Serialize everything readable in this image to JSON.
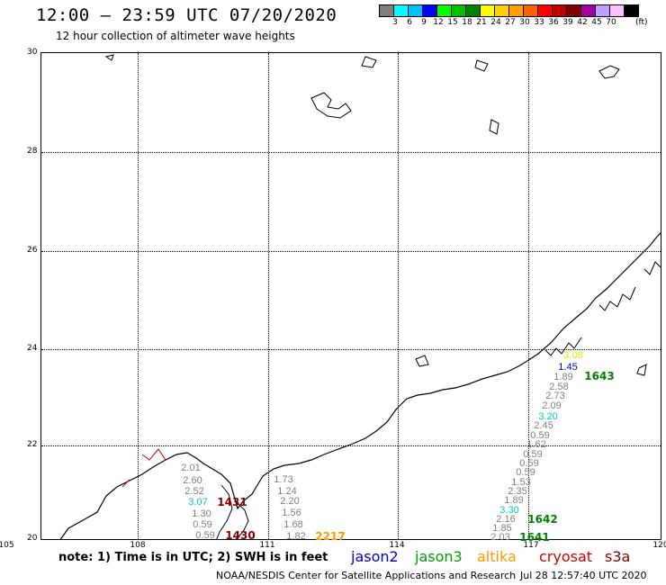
{
  "header": {
    "title": "12:00 — 23:59 UTC 07/20/2020",
    "subtitle": "12 hour collection of altimeter wave heights"
  },
  "colorbar": {
    "colors": [
      "#808080",
      "#00ffff",
      "#00c0ff",
      "#0000ff",
      "#00ff00",
      "#00c000",
      "#008000",
      "#ffff00",
      "#ffd000",
      "#ffa000",
      "#ff6000",
      "#ff0000",
      "#c00000",
      "#800000",
      "#a000a0",
      "#c0a0ff",
      "#ffc0ff",
      "#000000"
    ],
    "labels": [
      "3",
      "6",
      "9",
      "12",
      "15",
      "18",
      "21",
      "24",
      "27",
      "30",
      "33",
      "36",
      "39",
      "42",
      "45",
      "70"
    ],
    "unit": "(ft)"
  },
  "axes": {
    "lat_labels": [
      "30",
      "28",
      "26",
      "24",
      "22",
      "20"
    ],
    "lon_labels": [
      "105",
      "108",
      "111",
      "114",
      "117",
      "120"
    ]
  },
  "observations": {
    "track_west": [
      "2.01",
      "2.60",
      "2.52",
      "3.07",
      "1.30",
      "0.59",
      "0.59"
    ],
    "track_mid": [
      "1.73",
      "1.24",
      "2.20",
      "1.56",
      "1.68",
      "1.82"
    ],
    "track_east": [
      "3.08",
      "1.45",
      "1.89",
      "2.58",
      "2.73",
      "2.09",
      "3.20",
      "2.45",
      "0.59",
      "1.62",
      "0.59",
      "0.59",
      "0.59",
      "1.53",
      "2.35",
      "1.89",
      "3.30",
      "2.16",
      "1.85",
      "2.03"
    ]
  },
  "passes": {
    "p1": "1431",
    "p2": "1430",
    "p3": "2217",
    "p4": "1643",
    "p5": "1642",
    "p6": "1641"
  },
  "colors": {
    "jason2": "#0000cc",
    "jason3": "#00a000",
    "altika": "#ff9900",
    "cryosat": "#cc0000",
    "s3a": "#800000"
  },
  "legend": {
    "note": "note: 1) Time is in UTC; 2) SWH is in feet",
    "jason2": "jason2",
    "jason3": "jason3",
    "altika": "altika",
    "cryosat": "cryosat",
    "s3a": "s3a"
  },
  "footer": {
    "credit": "NOAA/NESDIS Center for Satellite Applications and Research",
    "timestamp": "Jul 28 12:57:40 UTC 2020"
  }
}
